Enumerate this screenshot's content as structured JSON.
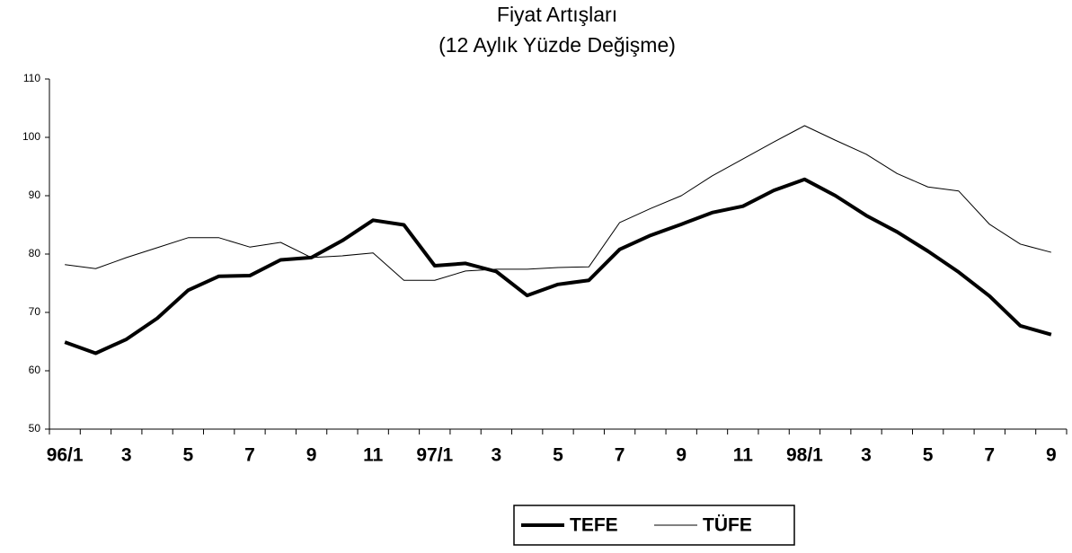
{
  "chart_data": {
    "type": "line",
    "title": "Fiyat Artışları",
    "subtitle": "(12 Aylık Yüzde Değişme)",
    "categories": [
      "96/1",
      null,
      "3",
      null,
      "5",
      null,
      "7",
      null,
      "9",
      null,
      "11",
      null,
      "97/1",
      null,
      "3",
      null,
      "5",
      null,
      "7",
      null,
      "9",
      null,
      "11",
      null,
      "98/1",
      null,
      "3",
      null,
      "5",
      null,
      "7",
      null,
      "9"
    ],
    "series": [
      {
        "name": "TEFE",
        "color": "#000000",
        "width": "thick",
        "values": [
          64.9,
          63.0,
          65.4,
          69.0,
          73.8,
          76.2,
          76.3,
          79.0,
          79.4,
          82.3,
          85.8,
          85.0,
          78.0,
          78.4,
          77.0,
          72.9,
          74.8,
          75.5,
          80.8,
          83.2,
          85.1,
          87.1,
          88.2,
          90.9,
          92.8,
          90.0,
          86.6,
          83.8,
          80.5,
          76.9,
          72.8,
          67.7,
          66.2
        ]
      },
      {
        "name": "TÜFE",
        "color": "#000000",
        "width": "thin",
        "values": [
          78.2,
          77.5,
          79.4,
          81.1,
          82.8,
          82.8,
          81.2,
          82.0,
          79.4,
          79.7,
          80.2,
          75.5,
          75.5,
          77.1,
          77.4,
          77.4,
          77.7,
          77.8,
          85.4,
          87.8,
          90.0,
          93.4,
          96.3,
          99.2,
          102.0,
          99.5,
          97.1,
          93.8,
          91.5,
          90.8,
          85.1,
          81.7,
          80.3
        ]
      }
    ],
    "ylim": [
      50,
      110
    ],
    "yticks": [
      50,
      60,
      70,
      80,
      90,
      100,
      110
    ],
    "grid": false,
    "legend": "bottom"
  }
}
